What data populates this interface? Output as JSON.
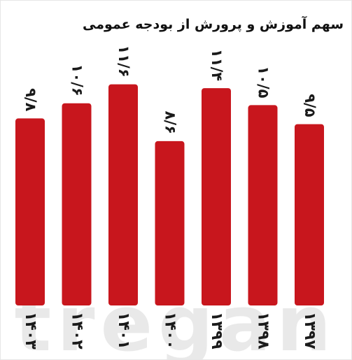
{
  "watermark": "tregan",
  "chart_data": {
    "type": "bar",
    "title": "سهم آموزش و پرورش از بودجه عمومی",
    "categories": [
      "۱۳۹۷",
      "۱۳۹۸",
      "۱۳۹۹",
      "۱۴۰۰",
      "۱۴۰۱",
      "۱۴۰۲",
      "۱۴۰۳"
    ],
    "values": [
      9.5,
      10.5,
      11.4,
      8.6,
      11.6,
      10.6,
      9.8
    ],
    "value_labels": [
      "۹/۵",
      "۱۰/۵",
      "۱۱/۴",
      "۸/۶",
      "۱۱/۶",
      "۱۰/۶",
      "۹/۸"
    ],
    "bar_color": "#c8161d",
    "xlabel": "",
    "ylabel": "",
    "grid": false,
    "legend": "none"
  }
}
